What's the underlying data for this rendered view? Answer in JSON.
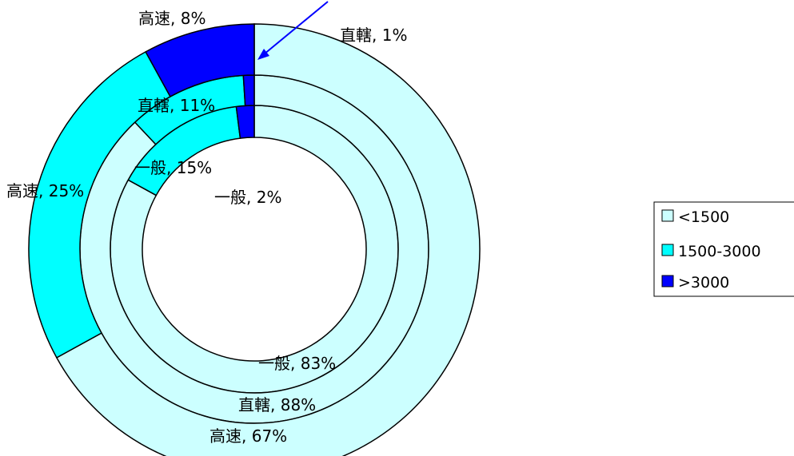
{
  "chart_data": {
    "type": "donut",
    "categories": [
      "<1500",
      "1500-3000",
      ">3000"
    ],
    "colors": {
      "<1500": "#ccffff",
      "1500-3000": "#00ffff",
      ">3000": "#0000ff"
    },
    "series": [
      {
        "name": "一般",
        "values": [
          83,
          15,
          2
        ]
      },
      {
        "name": "直轄",
        "values": [
          88,
          11,
          1
        ]
      },
      {
        "name": "高速",
        "values": [
          67,
          25,
          8
        ]
      }
    ],
    "data_labels": [
      {
        "text": "一般, 83%"
      },
      {
        "text": "一般, 15%"
      },
      {
        "text": "一般, 2%"
      },
      {
        "text": "直轄, 88%"
      },
      {
        "text": "直轄, 11%"
      },
      {
        "text": "直轄, 1%"
      },
      {
        "text": "高速, 67%"
      },
      {
        "text": "高速, 25%"
      },
      {
        "text": "高速, 8%"
      }
    ],
    "legend": {
      "placement": "right",
      "items": [
        {
          "label": "<1500",
          "color": "#ccffff"
        },
        {
          "label": "1500-3000",
          "color": "#00ffff"
        },
        {
          "label": ">3000",
          "color": "#0000ff"
        }
      ]
    }
  }
}
